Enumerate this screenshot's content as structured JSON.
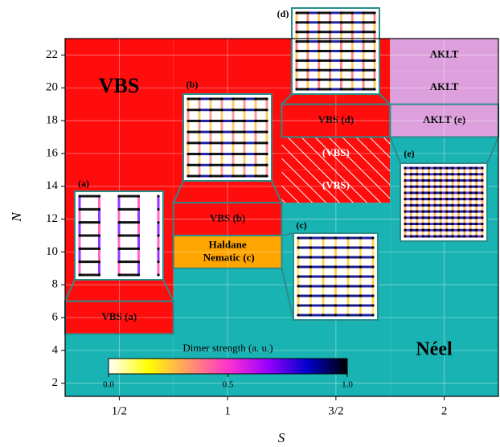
{
  "chart_data": {
    "type": "phase",
    "xlabel": "S",
    "ylabel": "N",
    "categories": [
      "1/2",
      "1",
      "3/2",
      "2"
    ],
    "ylim": [
      1.2,
      23
    ],
    "yticks": [
      2,
      4,
      6,
      8,
      10,
      12,
      14,
      16,
      18,
      20,
      22
    ],
    "grid": true,
    "phases": [
      [
        {
          "from": 1.2,
          "to": 5,
          "color": "#19b3b3"
        },
        {
          "from": 5,
          "to": 7,
          "color": "#ff0d0d",
          "label": "VBS (a)"
        },
        {
          "from": 7,
          "to": 23,
          "color": "#ff0d0d"
        }
      ],
      [
        {
          "from": 1.2,
          "to": 9,
          "color": "#19b3b3"
        },
        {
          "from": 9,
          "to": 11,
          "color": "#ffa500",
          "label": "Haldane Nematic (c)"
        },
        {
          "from": 11,
          "to": 13,
          "color": "#ff0d0d",
          "label": "VBS (b)"
        },
        {
          "from": 13,
          "to": 23,
          "color": "#ff0d0d"
        }
      ],
      [
        {
          "from": 1.2,
          "to": 13,
          "color": "#19b3b3"
        },
        {
          "from": 13,
          "to": 15,
          "color": "#ff0d0d",
          "hatch": true,
          "label": "(VBS)"
        },
        {
          "from": 15,
          "to": 17,
          "color": "#ff0d0d",
          "hatch": true,
          "label": "(VBS)"
        },
        {
          "from": 17,
          "to": 19,
          "color": "#ff0d0d",
          "label": "VBS (d)"
        },
        {
          "from": 19,
          "to": 23,
          "color": "#ff0d0d"
        }
      ],
      [
        {
          "from": 1.2,
          "to": 17,
          "color": "#19b3b3"
        },
        {
          "from": 17,
          "to": 19,
          "color": "#dda0dd",
          "label": "AKLT (e)"
        },
        {
          "from": 19,
          "to": 21,
          "color": "#dda0dd",
          "label": "AKLT"
        },
        {
          "from": 21,
          "to": 23,
          "color": "#dda0dd",
          "label": "AKLT"
        }
      ]
    ],
    "annotations": [
      {
        "text": "VBS"
      },
      {
        "text": "Néel"
      }
    ],
    "insets": [
      {
        "label": "(a)"
      },
      {
        "label": "(b)"
      },
      {
        "label": "(c)"
      },
      {
        "label": "(d)"
      },
      {
        "label": "(e)"
      }
    ],
    "colorbar": {
      "label": "Dimer strength (a. u.)",
      "lim": [
        0,
        1
      ],
      "ticks": [
        {
          "value": 0,
          "label": "0.0"
        },
        {
          "value": 0.5,
          "label": "0.5"
        },
        {
          "value": 1,
          "label": "1.0"
        }
      ],
      "colors": [
        "#ffffff",
        "#ffff00",
        "#ff9966",
        "#ff33cc",
        "#9900ff",
        "#0000cc",
        "#000000"
      ]
    }
  }
}
